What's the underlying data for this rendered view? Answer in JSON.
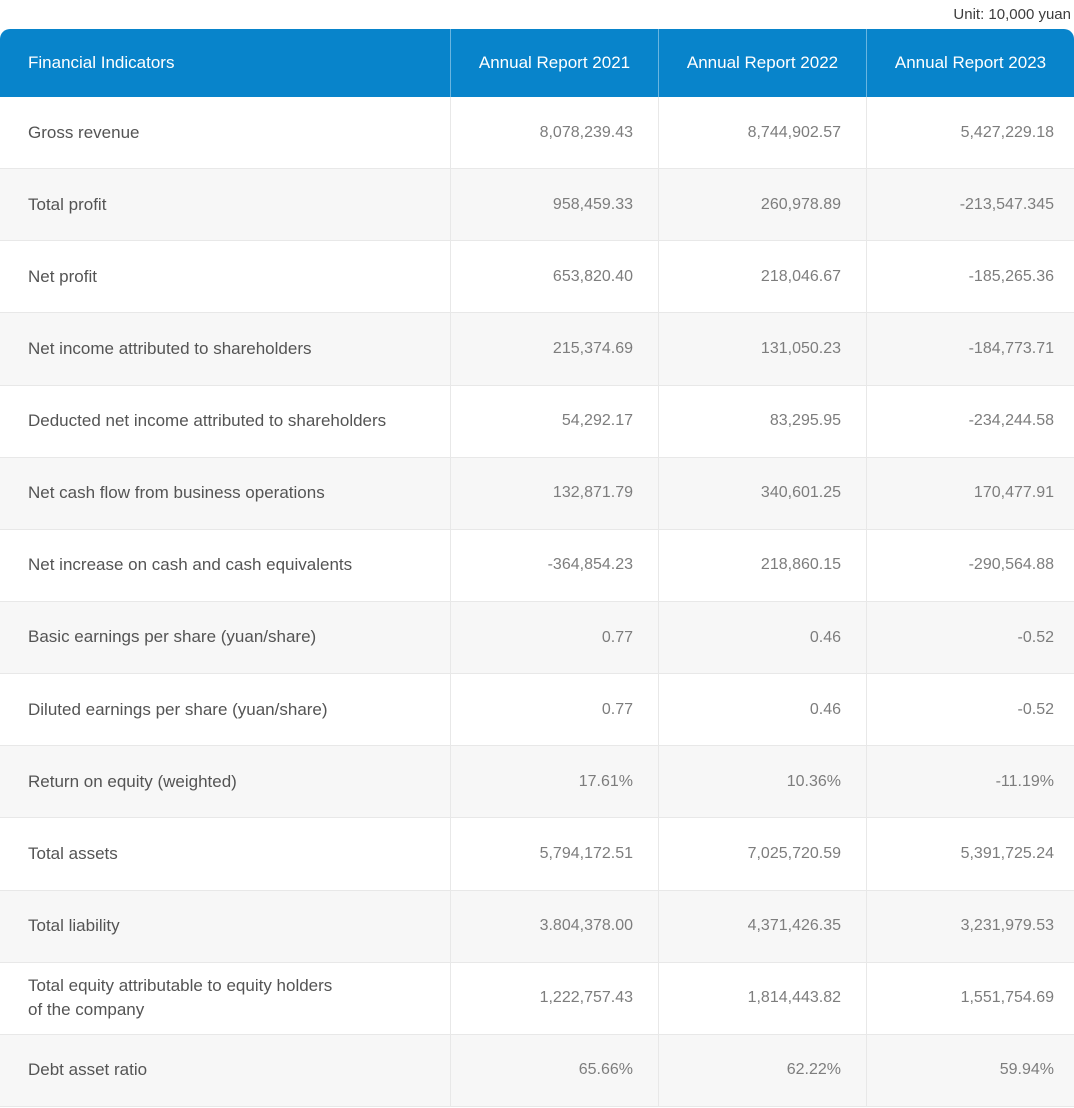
{
  "unit_note": "Unit: 10,000 yuan",
  "colors": {
    "header_bg": "#0884cb",
    "header_text": "#ffffff",
    "alt_row_bg": "#f7f7f7",
    "row_border": "#e8e8e8",
    "label_text": "#545454",
    "value_text": "#7d7d7d"
  },
  "table": {
    "columns": [
      "Financial Indicators",
      "Annual Report 2021",
      "Annual Report 2022",
      "Annual Report 2023"
    ],
    "rows": [
      {
        "label": "Gross revenue",
        "values": [
          "8,078,239.43",
          "8,744,902.57",
          "5,427,229.18"
        ]
      },
      {
        "label": "Total profit",
        "values": [
          "958,459.33",
          "260,978.89",
          "-213,547.345"
        ]
      },
      {
        "label": "Net profit",
        "values": [
          "653,820.40",
          "218,046.67",
          "-185,265.36"
        ]
      },
      {
        "label": "Net income attributed to shareholders",
        "values": [
          "215,374.69",
          "131,050.23",
          "-184,773.71"
        ]
      },
      {
        "label": "Deducted net income attributed to shareholders",
        "values": [
          "54,292.17",
          "83,295.95",
          "-234,244.58"
        ]
      },
      {
        "label": "Net cash flow from business operations",
        "values": [
          "132,871.79",
          "340,601.25",
          "170,477.91"
        ]
      },
      {
        "label": "Net increase on cash and cash equivalents",
        "values": [
          "-364,854.23",
          "218,860.15",
          "-290,564.88"
        ]
      },
      {
        "label": "Basic earnings per share (yuan/share)",
        "values": [
          "0.77",
          "0.46",
          "-0.52"
        ]
      },
      {
        "label": "Diluted earnings per share (yuan/share)",
        "values": [
          "0.77",
          "0.46",
          "-0.52"
        ]
      },
      {
        "label": "Return on equity (weighted)",
        "values": [
          "17.61%",
          "10.36%",
          "-11.19%"
        ]
      },
      {
        "label": "Total assets",
        "values": [
          "5,794,172.51",
          "7,025,720.59",
          "5,391,725.24"
        ]
      },
      {
        "label": "Total liability",
        "values": [
          "3.804,378.00",
          "4,371,426.35",
          "3,231,979.53"
        ]
      },
      {
        "label": "Total equity attributable to equity holders\nof the company",
        "values": [
          "1,222,757.43",
          "1,814,443.82",
          "1,551,754.69"
        ]
      },
      {
        "label": "Debt asset ratio",
        "values": [
          "65.66%",
          "62.22%",
          "59.94%"
        ]
      }
    ]
  }
}
